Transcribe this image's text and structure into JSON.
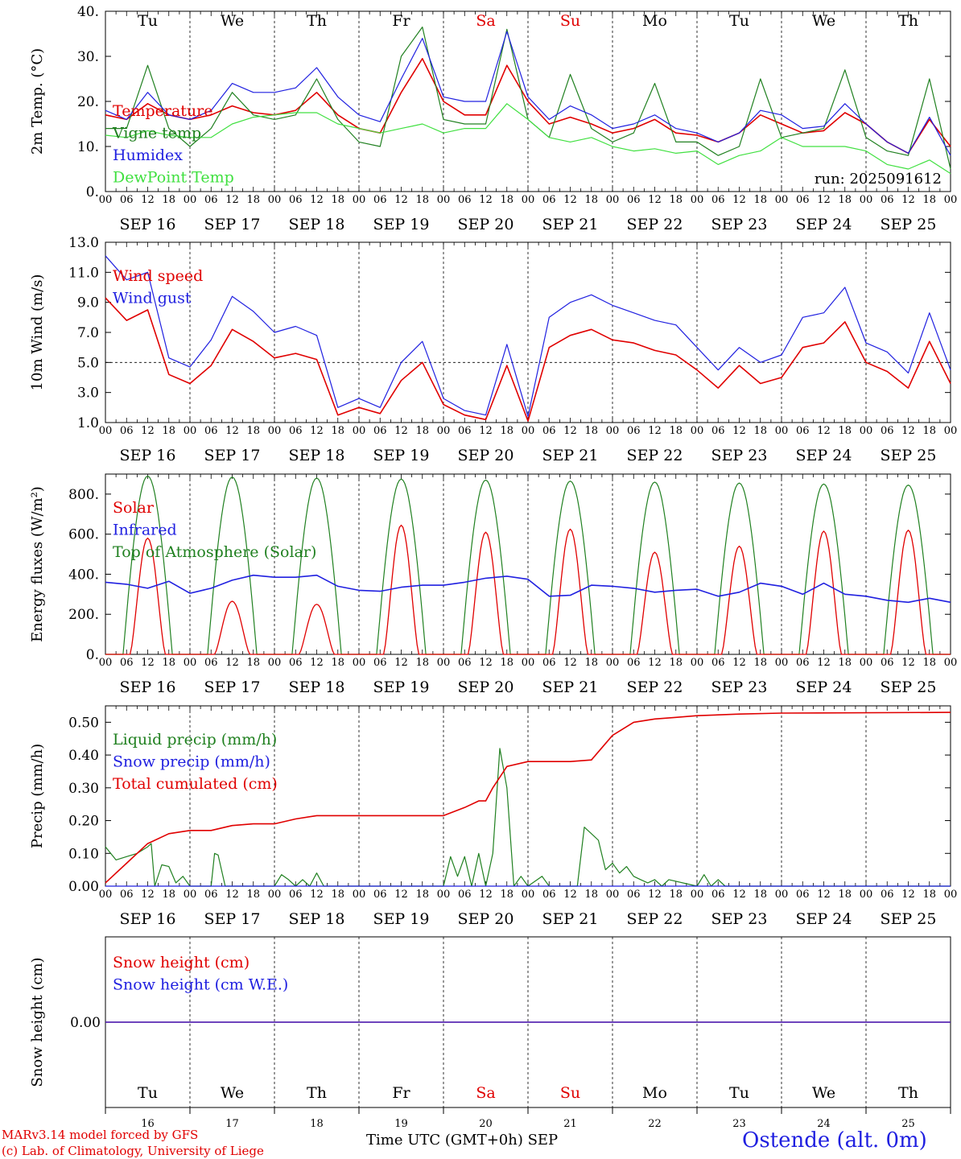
{
  "run_label": "run: 2025091612",
  "colors": {
    "red": "#e00000",
    "blue": "#2020e0",
    "green": "#208020",
    "lightgreen": "#40e040",
    "black": "#000000",
    "dayname_red": "#e00000"
  },
  "days": {
    "weekday_names": [
      "Tu",
      "We",
      "Th",
      "Fr",
      "Sa",
      "Su",
      "Mo",
      "Tu",
      "We",
      "Th"
    ],
    "weekend_flags": [
      false,
      false,
      false,
      false,
      true,
      true,
      false,
      false,
      false,
      false
    ],
    "date_labels": [
      "SEP 16",
      "SEP 17",
      "SEP 18",
      "SEP 19",
      "SEP 20",
      "SEP 21",
      "SEP 22",
      "SEP 23",
      "SEP 24",
      "SEP 25"
    ],
    "day_numbers": [
      "16",
      "17",
      "18",
      "19",
      "20",
      "21",
      "22",
      "23",
      "24",
      "25"
    ],
    "hour_ticks": [
      "00",
      "06",
      "12",
      "18"
    ],
    "end_tick": "00"
  },
  "chart_data": [
    {
      "type": "line",
      "ylabel": "2m Temp. (°C)",
      "ylim": [
        0,
        40
      ],
      "yticks": [
        "0.",
        "10.",
        "20.",
        "30.",
        "40."
      ],
      "x_unit": "hours since 2025-09-16 00 UTC",
      "series": [
        {
          "name": "Temperature",
          "color": "red",
          "x": [
            0,
            6,
            12,
            18,
            24,
            30,
            36,
            42,
            48,
            54,
            60,
            66,
            72,
            78,
            84,
            90,
            96,
            102,
            108,
            114,
            120,
            126,
            132,
            138,
            144,
            150,
            156,
            162,
            168,
            174,
            180,
            186,
            192,
            198,
            204,
            210,
            216,
            222,
            228,
            234,
            240
          ],
          "y": [
            17,
            16,
            19.5,
            17,
            16,
            17,
            19,
            17.5,
            17,
            18,
            22,
            17,
            14,
            13,
            22,
            29.5,
            20,
            17,
            17,
            28,
            20,
            15,
            16.5,
            15,
            13,
            14,
            16,
            13,
            12.5,
            11,
            13,
            17,
            15,
            13,
            13.5,
            17.5,
            15,
            11,
            8.5,
            16,
            10
          ]
        },
        {
          "name": "Vigne temp",
          "color": "green",
          "x": [
            0,
            6,
            12,
            18,
            24,
            30,
            36,
            42,
            48,
            54,
            60,
            66,
            72,
            78,
            84,
            90,
            96,
            102,
            108,
            114,
            120,
            126,
            132,
            138,
            144,
            150,
            156,
            162,
            168,
            174,
            180,
            186,
            192,
            198,
            204,
            210,
            216,
            222,
            228,
            234,
            240
          ],
          "y": [
            14,
            14,
            28,
            14,
            10,
            14,
            22,
            17,
            16,
            17,
            25,
            16,
            11,
            10,
            30,
            36.5,
            16,
            15,
            15,
            36,
            16,
            12,
            26,
            14,
            11,
            13,
            24,
            11,
            11,
            8,
            10,
            25,
            12,
            13,
            14,
            27,
            12,
            9,
            8,
            25,
            5
          ]
        },
        {
          "name": "Humidex",
          "color": "blue",
          "x": [
            0,
            6,
            12,
            18,
            24,
            30,
            36,
            42,
            48,
            54,
            60,
            66,
            72,
            78,
            84,
            90,
            96,
            102,
            108,
            114,
            120,
            126,
            132,
            138,
            144,
            150,
            156,
            162,
            168,
            174,
            180,
            186,
            192,
            198,
            204,
            210,
            216,
            222,
            228,
            234,
            240
          ],
          "y": [
            18,
            16,
            22,
            17,
            16,
            18,
            24,
            22,
            22,
            23,
            27.5,
            21,
            17,
            15.5,
            25,
            34,
            21,
            20,
            20,
            35.5,
            21,
            16,
            19,
            17,
            14,
            15,
            17,
            14,
            13,
            11,
            13,
            18,
            17,
            14,
            14.5,
            19.5,
            15,
            11,
            8.5,
            16.5,
            8
          ]
        },
        {
          "name": "DewPoint Temp",
          "color": "lightgreen",
          "x": [
            0,
            6,
            12,
            18,
            24,
            30,
            36,
            42,
            48,
            54,
            60,
            66,
            72,
            78,
            84,
            90,
            96,
            102,
            108,
            114,
            120,
            126,
            132,
            138,
            144,
            150,
            156,
            162,
            168,
            174,
            180,
            186,
            192,
            198,
            204,
            210,
            216,
            222,
            228,
            234,
            240
          ],
          "y": [
            12.5,
            12,
            13.5,
            12.5,
            12,
            12,
            15,
            16.5,
            17,
            17.5,
            17.5,
            15,
            14,
            13,
            14,
            15,
            13,
            14,
            14,
            19.5,
            16,
            12,
            11,
            12,
            10,
            9,
            9.5,
            8.5,
            9,
            6,
            8,
            9,
            12,
            10,
            10,
            10,
            9,
            6,
            5,
            7,
            4
          ]
        }
      ],
      "legend": [
        "Temperature",
        "Vigne temp",
        "Humidex",
        "DewPoint Temp"
      ],
      "legend_colors": [
        "red",
        "green",
        "blue",
        "lightgreen"
      ],
      "legend_position": "top-left"
    },
    {
      "type": "line",
      "ylabel": "10m Wind (m/s)",
      "ylim": [
        1,
        13
      ],
      "yticks": [
        "1.0",
        "3.0",
        "5.0",
        "7.0",
        "9.0",
        "11.0",
        "13.0"
      ],
      "reference_line": 5.0,
      "x_unit": "hours since 2025-09-16 00 UTC",
      "series": [
        {
          "name": "Wind speed",
          "color": "red",
          "x": [
            0,
            6,
            12,
            18,
            24,
            30,
            36,
            42,
            48,
            54,
            60,
            66,
            72,
            78,
            84,
            90,
            96,
            102,
            108,
            114,
            120,
            126,
            132,
            138,
            144,
            150,
            156,
            162,
            168,
            174,
            180,
            186,
            192,
            198,
            204,
            210,
            216,
            222,
            228,
            234,
            240
          ],
          "y": [
            9.3,
            7.8,
            8.5,
            4.2,
            3.6,
            4.8,
            7.2,
            6.4,
            5.3,
            5.6,
            5.2,
            1.5,
            2.0,
            1.6,
            3.8,
            5.0,
            2.2,
            1.5,
            1.2,
            4.8,
            1.1,
            6.0,
            6.8,
            7.2,
            6.5,
            6.3,
            5.8,
            5.5,
            4.5,
            3.3,
            4.8,
            3.6,
            4.0,
            6.0,
            6.3,
            7.7,
            5.0,
            4.4,
            3.3,
            6.4,
            3.6
          ]
        },
        {
          "name": "Wind gust",
          "color": "blue",
          "x": [
            0,
            6,
            12,
            18,
            24,
            30,
            36,
            42,
            48,
            54,
            60,
            66,
            72,
            78,
            84,
            90,
            96,
            102,
            108,
            114,
            120,
            126,
            132,
            138,
            144,
            150,
            156,
            162,
            168,
            174,
            180,
            186,
            192,
            198,
            204,
            210,
            216,
            222,
            228,
            234,
            240
          ],
          "y": [
            12.1,
            10.5,
            11.0,
            5.3,
            4.7,
            6.5,
            9.4,
            8.4,
            7.0,
            7.4,
            6.8,
            2.0,
            2.6,
            2.0,
            5.0,
            6.4,
            2.6,
            1.8,
            1.5,
            6.2,
            1.4,
            8.0,
            9.0,
            9.5,
            8.8,
            8.3,
            7.8,
            7.5,
            6.0,
            4.5,
            6.0,
            5.0,
            5.5,
            8.0,
            8.3,
            10.0,
            6.3,
            5.7,
            4.3,
            8.3,
            4.5
          ]
        }
      ],
      "legend": [
        "Wind speed",
        "Wind gust"
      ],
      "legend_colors": [
        "red",
        "blue"
      ],
      "legend_position": "top-left"
    },
    {
      "type": "line",
      "ylabel": "Energy fluxes (W/m²)",
      "ylim": [
        0,
        900
      ],
      "yticks": [
        "0.",
        "200.",
        "400.",
        "600.",
        "800."
      ],
      "x_unit": "hours since 2025-09-16 00 UTC",
      "solar_peaks": [
        580,
        265,
        250,
        645,
        610,
        625,
        510,
        540,
        615,
        620
      ],
      "toa_peaks": [
        890,
        885,
        880,
        875,
        870,
        865,
        860,
        855,
        850,
        845
      ],
      "series": [
        {
          "name": "Infrared",
          "color": "blue",
          "x": [
            0,
            6,
            12,
            18,
            24,
            30,
            36,
            42,
            48,
            54,
            60,
            66,
            72,
            78,
            84,
            90,
            96,
            102,
            108,
            114,
            120,
            126,
            132,
            138,
            144,
            150,
            156,
            162,
            168,
            174,
            180,
            186,
            192,
            198,
            204,
            210,
            216,
            222,
            228,
            234,
            240
          ],
          "y": [
            360,
            350,
            330,
            365,
            305,
            330,
            370,
            395,
            385,
            385,
            395,
            340,
            320,
            315,
            335,
            345,
            345,
            360,
            380,
            390,
            375,
            290,
            295,
            345,
            340,
            330,
            310,
            320,
            325,
            290,
            310,
            355,
            340,
            300,
            355,
            300,
            290,
            270,
            260,
            280,
            260
          ]
        }
      ],
      "legend": [
        "Solar",
        "Infrared",
        "Top of Atmosphere (Solar)"
      ],
      "legend_colors": [
        "red",
        "blue",
        "green"
      ],
      "legend_position": "top-left"
    },
    {
      "type": "line",
      "ylabel": "Precip (mm/h)",
      "ylim": [
        0,
        0.55
      ],
      "yticks": [
        "0.00",
        "0.10",
        "0.20",
        "0.30",
        "0.40",
        "0.50"
      ],
      "x_unit": "hours since 2025-09-16 00 UTC",
      "series": [
        {
          "name": "Liquid precip (mm/h)",
          "color": "green",
          "x": [
            0,
            3,
            6,
            9,
            12,
            13,
            14,
            16,
            18,
            20,
            22,
            24,
            30,
            31,
            32,
            34,
            36,
            48,
            50,
            52,
            54,
            56,
            58,
            60,
            62,
            64,
            66,
            96,
            98,
            100,
            102,
            104,
            106,
            108,
            110,
            112,
            114,
            116,
            118,
            120,
            124,
            126,
            134,
            136,
            138,
            140,
            142,
            144,
            146,
            148,
            150,
            152,
            154,
            156,
            158,
            160,
            168,
            170,
            172,
            174,
            176,
            180,
            240
          ],
          "y": [
            0.12,
            0.08,
            0.09,
            0.1,
            0.12,
            0.13,
            0,
            0.065,
            0.06,
            0.01,
            0.03,
            0,
            0,
            0.1,
            0.095,
            0,
            0,
            0,
            0.035,
            0.02,
            0,
            0.02,
            0,
            0.04,
            0,
            0,
            0,
            0,
            0.09,
            0.03,
            0.09,
            0,
            0.1,
            0,
            0.1,
            0.42,
            0.3,
            0,
            0.03,
            0,
            0.03,
            0,
            0,
            0.18,
            0.16,
            0.14,
            0.05,
            0.07,
            0.04,
            0.06,
            0.03,
            0.02,
            0.01,
            0.02,
            0,
            0.02,
            0,
            0.035,
            0,
            0.02,
            0,
            0,
            0
          ]
        },
        {
          "name": "Snow precip (mm/h)",
          "color": "blue",
          "x": [
            0,
            240
          ],
          "y": [
            0,
            0
          ]
        },
        {
          "name": "Total cumulated (cm)",
          "color": "red",
          "x": [
            0,
            6,
            12,
            18,
            24,
            30,
            36,
            42,
            48,
            54,
            60,
            72,
            84,
            96,
            102,
            106,
            108,
            110,
            114,
            120,
            132,
            138,
            144,
            150,
            156,
            162,
            168,
            180,
            192,
            240
          ],
          "y": [
            0.01,
            0.07,
            0.13,
            0.16,
            0.17,
            0.17,
            0.185,
            0.19,
            0.19,
            0.205,
            0.215,
            0.215,
            0.215,
            0.215,
            0.24,
            0.26,
            0.26,
            0.3,
            0.365,
            0.38,
            0.38,
            0.385,
            0.46,
            0.5,
            0.51,
            0.515,
            0.52,
            0.525,
            0.528,
            0.53
          ]
        }
      ],
      "legend": [
        "Liquid precip (mm/h)",
        "Snow precip (mm/h)",
        "Total cumulated (cm)"
      ],
      "legend_colors": [
        "green",
        "blue",
        "red"
      ],
      "legend_position": "top-left"
    },
    {
      "type": "line",
      "ylabel": "Snow height (cm)",
      "yticks": [
        "0.00"
      ],
      "x_unit": "hours since 2025-09-16 00 UTC",
      "series": [
        {
          "name": "Snow height (cm)",
          "color": "red",
          "x": [
            0,
            240
          ],
          "y": [
            0,
            0
          ]
        },
        {
          "name": "Snow height (cm W.E.)",
          "color": "blue",
          "x": [
            0,
            240
          ],
          "y": [
            0,
            0
          ]
        }
      ],
      "legend": [
        "Snow height (cm)",
        "Snow height (cm W.E.)"
      ],
      "legend_colors": [
        "red",
        "blue"
      ],
      "legend_position": "top-left"
    }
  ],
  "footer": {
    "model_line1": "MARv3.14 model forced by GFS",
    "model_line2": "(c) Lab. of Climatology, University of Liege",
    "xaxis_label": "Time UTC (GMT+0h) SEP",
    "station": "Ostende (alt. 0m)"
  }
}
